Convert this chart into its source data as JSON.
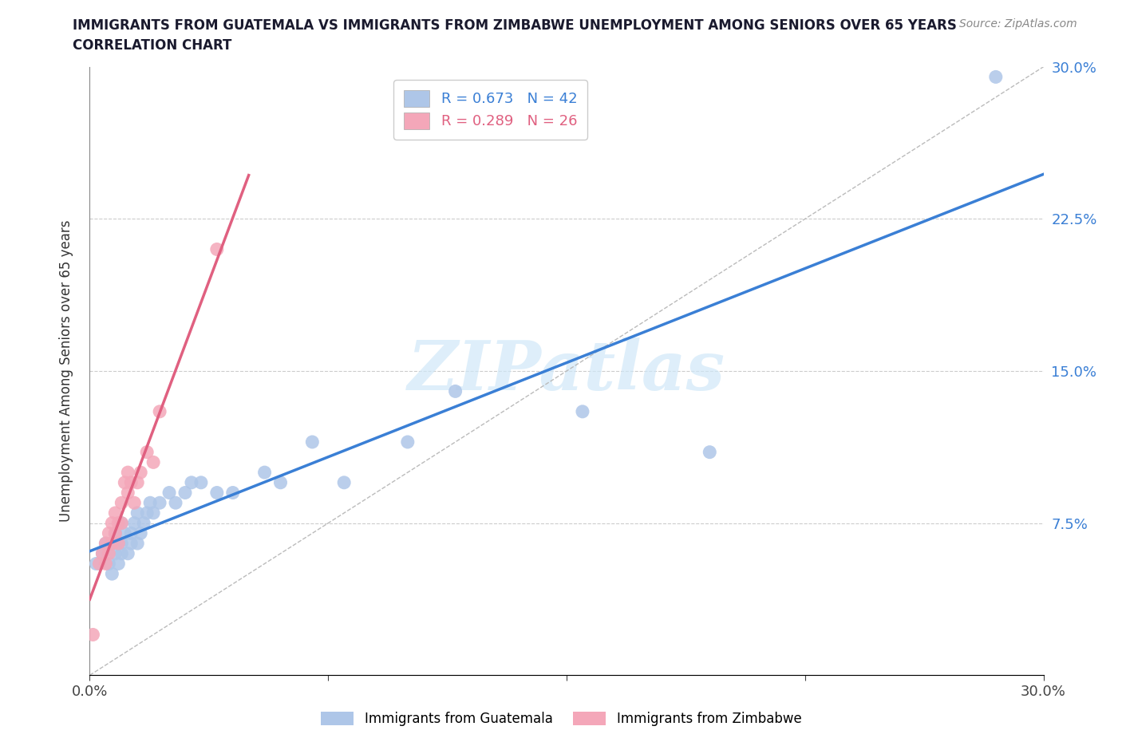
{
  "title_line1": "IMMIGRANTS FROM GUATEMALA VS IMMIGRANTS FROM ZIMBABWE UNEMPLOYMENT AMONG SENIORS OVER 65 YEARS",
  "title_line2": "CORRELATION CHART",
  "source_text": "Source: ZipAtlas.com",
  "ylabel": "Unemployment Among Seniors over 65 years",
  "xlim": [
    0.0,
    0.3
  ],
  "ylim": [
    0.0,
    0.3
  ],
  "r_guatemala": 0.673,
  "n_guatemala": 42,
  "r_zimbabwe": 0.289,
  "n_zimbabwe": 26,
  "guatemala_color": "#aec6e8",
  "zimbabwe_color": "#f4a7b9",
  "guatemala_line_color": "#3a7fd5",
  "zimbabwe_line_color": "#e06080",
  "watermark_text": "ZIPatlas",
  "guatemala_x": [
    0.002,
    0.004,
    0.005,
    0.006,
    0.007,
    0.007,
    0.008,
    0.008,
    0.009,
    0.009,
    0.01,
    0.01,
    0.01,
    0.011,
    0.012,
    0.013,
    0.013,
    0.014,
    0.015,
    0.015,
    0.016,
    0.017,
    0.018,
    0.019,
    0.02,
    0.022,
    0.025,
    0.027,
    0.03,
    0.032,
    0.035,
    0.04,
    0.045,
    0.055,
    0.06,
    0.07,
    0.08,
    0.1,
    0.115,
    0.155,
    0.195,
    0.285
  ],
  "guatemala_y": [
    0.055,
    0.06,
    0.065,
    0.055,
    0.05,
    0.065,
    0.06,
    0.07,
    0.055,
    0.065,
    0.06,
    0.065,
    0.075,
    0.07,
    0.06,
    0.065,
    0.07,
    0.075,
    0.065,
    0.08,
    0.07,
    0.075,
    0.08,
    0.085,
    0.08,
    0.085,
    0.09,
    0.085,
    0.09,
    0.095,
    0.095,
    0.09,
    0.09,
    0.1,
    0.095,
    0.115,
    0.095,
    0.115,
    0.14,
    0.13,
    0.11,
    0.295
  ],
  "zimbabwe_x": [
    0.001,
    0.003,
    0.004,
    0.005,
    0.005,
    0.006,
    0.006,
    0.007,
    0.007,
    0.008,
    0.008,
    0.009,
    0.009,
    0.01,
    0.01,
    0.011,
    0.012,
    0.012,
    0.013,
    0.014,
    0.015,
    0.016,
    0.018,
    0.02,
    0.022,
    0.04
  ],
  "zimbabwe_y": [
    0.02,
    0.055,
    0.06,
    0.055,
    0.065,
    0.06,
    0.07,
    0.065,
    0.075,
    0.07,
    0.08,
    0.065,
    0.075,
    0.075,
    0.085,
    0.095,
    0.09,
    0.1,
    0.095,
    0.085,
    0.095,
    0.1,
    0.11,
    0.105,
    0.13,
    0.21
  ]
}
